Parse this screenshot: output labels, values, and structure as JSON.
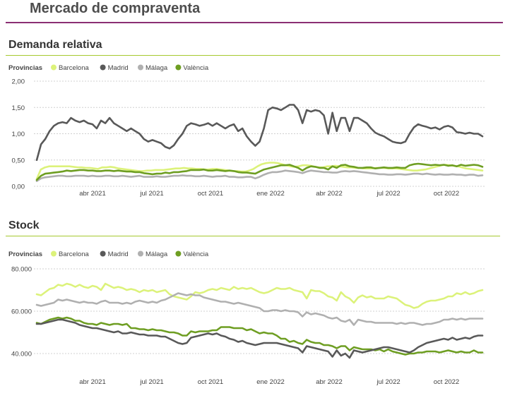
{
  "page": {
    "title": "Mercado de compraventa"
  },
  "colors": {
    "Barcelona": "#dcf27a",
    "Madrid": "#595959",
    "Málaga": "#b0b0b0",
    "València": "#6e9e22",
    "title_rule": "#8b2f73",
    "section_rule": "#a6c92f"
  },
  "chart_data": [
    {
      "type": "line",
      "title": "Demanda relativa",
      "legend_title": "Provincias",
      "legend_position": "top-left",
      "x_ticks": [
        "abr 2021",
        "jul 2021",
        "oct 2021",
        "ene 2022",
        "abr 2022",
        "jul 2022",
        "oct 2022"
      ],
      "y_ticks": [
        "2,00",
        "1,50",
        "1,00",
        "0,50",
        "0,00"
      ],
      "ylim": [
        0,
        2
      ],
      "grid": "horizontal dashed",
      "x_range": [
        "2021-01",
        "2022-12"
      ],
      "series": [
        {
          "name": "Barcelona",
          "values": [
            0.14,
            0.32,
            0.36,
            0.38,
            0.38,
            0.38,
            0.38,
            0.38,
            0.38,
            0.37,
            0.36,
            0.36,
            0.35,
            0.35,
            0.34,
            0.33,
            0.36,
            0.36,
            0.37,
            0.36,
            0.34,
            0.33,
            0.32,
            0.31,
            0.3,
            0.29,
            0.29,
            0.3,
            0.3,
            0.31,
            0.31,
            0.31,
            0.32,
            0.33,
            0.34,
            0.34,
            0.35,
            0.34,
            0.34,
            0.33,
            0.33,
            0.32,
            0.32,
            0.33,
            0.33,
            0.32,
            0.31,
            0.3,
            0.29,
            0.29,
            0.28,
            0.28,
            0.3,
            0.33,
            0.38,
            0.42,
            0.44,
            0.45,
            0.45,
            0.44,
            0.42,
            0.4,
            0.38,
            0.37,
            0.38,
            0.4,
            0.4,
            0.39,
            0.37,
            0.36,
            0.36,
            0.38,
            0.38,
            0.39,
            0.38,
            0.37,
            0.36,
            0.36,
            0.35,
            0.35,
            0.34,
            0.34,
            0.34,
            0.35,
            0.35,
            0.35,
            0.34,
            0.34,
            0.34,
            0.33,
            0.32,
            0.31,
            0.3,
            0.3,
            0.31,
            0.32,
            0.34,
            0.36,
            0.38,
            0.4,
            0.41,
            0.4,
            0.39,
            0.38,
            0.36,
            0.34,
            0.33,
            0.32,
            0.31,
            0.3
          ]
        },
        {
          "name": "Madrid",
          "values": [
            0.5,
            0.8,
            0.9,
            1.05,
            1.15,
            1.2,
            1.22,
            1.2,
            1.3,
            1.25,
            1.22,
            1.25,
            1.2,
            1.18,
            1.1,
            1.25,
            1.2,
            1.3,
            1.2,
            1.15,
            1.1,
            1.05,
            1.1,
            1.05,
            1.0,
            0.9,
            0.85,
            0.88,
            0.85,
            0.82,
            0.75,
            0.72,
            0.78,
            0.9,
            1.0,
            1.15,
            1.2,
            1.18,
            1.15,
            1.17,
            1.2,
            1.15,
            1.2,
            1.15,
            1.1,
            1.15,
            1.18,
            1.05,
            1.1,
            0.95,
            0.85,
            0.77,
            0.85,
            1.1,
            1.45,
            1.5,
            1.48,
            1.45,
            1.5,
            1.55,
            1.55,
            1.45,
            1.2,
            1.45,
            1.42,
            1.45,
            1.43,
            1.35,
            1.0,
            1.4,
            1.05,
            1.3,
            1.3,
            1.05,
            1.3,
            1.3,
            1.25,
            1.2,
            1.1,
            1.02,
            0.98,
            0.95,
            0.9,
            0.85,
            0.83,
            0.82,
            0.85,
            1.0,
            1.12,
            1.18,
            1.15,
            1.13,
            1.1,
            1.12,
            1.08,
            1.13,
            1.15,
            1.12,
            1.03,
            1.02,
            1.0,
            1.02,
            1.0,
            1.0,
            0.95
          ]
        },
        {
          "name": "Málaga",
          "values": [
            0.1,
            0.15,
            0.17,
            0.18,
            0.19,
            0.2,
            0.2,
            0.19,
            0.19,
            0.2,
            0.2,
            0.2,
            0.19,
            0.2,
            0.19,
            0.19,
            0.2,
            0.2,
            0.19,
            0.19,
            0.2,
            0.19,
            0.18,
            0.19,
            0.2,
            0.18,
            0.18,
            0.18,
            0.19,
            0.18,
            0.18,
            0.19,
            0.2,
            0.2,
            0.21,
            0.2,
            0.2,
            0.19,
            0.19,
            0.2,
            0.19,
            0.18,
            0.19,
            0.19,
            0.2,
            0.18,
            0.18,
            0.17,
            0.17,
            0.18,
            0.18,
            0.15,
            0.18,
            0.22,
            0.25,
            0.27,
            0.27,
            0.28,
            0.3,
            0.29,
            0.28,
            0.27,
            0.25,
            0.28,
            0.3,
            0.29,
            0.28,
            0.27,
            0.27,
            0.26,
            0.26,
            0.28,
            0.29,
            0.28,
            0.29,
            0.28,
            0.27,
            0.26,
            0.25,
            0.24,
            0.23,
            0.23,
            0.22,
            0.22,
            0.23,
            0.23,
            0.22,
            0.23,
            0.24,
            0.24,
            0.23,
            0.24,
            0.23,
            0.22,
            0.23,
            0.22,
            0.22,
            0.23,
            0.22,
            0.22,
            0.21,
            0.22,
            0.22,
            0.2,
            0.21
          ]
        },
        {
          "name": "València",
          "values": [
            0.12,
            0.2,
            0.24,
            0.25,
            0.26,
            0.27,
            0.28,
            0.3,
            0.29,
            0.3,
            0.31,
            0.31,
            0.3,
            0.3,
            0.29,
            0.29,
            0.3,
            0.3,
            0.29,
            0.3,
            0.29,
            0.28,
            0.28,
            0.27,
            0.27,
            0.25,
            0.24,
            0.23,
            0.24,
            0.24,
            0.26,
            0.25,
            0.27,
            0.27,
            0.28,
            0.29,
            0.31,
            0.31,
            0.31,
            0.32,
            0.3,
            0.3,
            0.31,
            0.3,
            0.29,
            0.3,
            0.29,
            0.27,
            0.26,
            0.26,
            0.25,
            0.24,
            0.28,
            0.32,
            0.34,
            0.36,
            0.38,
            0.4,
            0.4,
            0.41,
            0.38,
            0.35,
            0.3,
            0.35,
            0.38,
            0.37,
            0.35,
            0.35,
            0.32,
            0.38,
            0.35,
            0.4,
            0.41,
            0.38,
            0.37,
            0.35,
            0.35,
            0.36,
            0.36,
            0.34,
            0.35,
            0.36,
            0.35,
            0.35,
            0.36,
            0.35,
            0.35,
            0.4,
            0.42,
            0.43,
            0.42,
            0.41,
            0.4,
            0.41,
            0.4,
            0.41,
            0.39,
            0.4,
            0.38,
            0.41,
            0.39,
            0.4,
            0.41,
            0.4,
            0.37
          ]
        }
      ]
    },
    {
      "type": "line",
      "title": "Stock",
      "legend_title": "Provincias",
      "legend_position": "top-left",
      "x_ticks": [
        "abr 2021",
        "jul 2021",
        "oct 2021",
        "ene 2022",
        "abr 2022",
        "jul 2022",
        "oct 2022"
      ],
      "y_ticks": [
        "80.000",
        "60.000",
        "40.000"
      ],
      "ylim": [
        34000,
        80000
      ],
      "grid": "horizontal dashed",
      "x_range": [
        "2021-01",
        "2022-12"
      ],
      "series": [
        {
          "name": "Barcelona",
          "values": [
            68000,
            67500,
            69000,
            70500,
            71000,
            72500,
            72000,
            73000,
            72500,
            71500,
            72500,
            71500,
            71000,
            72000,
            71500,
            70000,
            73000,
            72000,
            71000,
            71500,
            71000,
            70000,
            70500,
            70000,
            69000,
            70000,
            69500,
            70000,
            69000,
            69500,
            70000,
            68000,
            67000,
            66500,
            66000,
            65500,
            67000,
            69000,
            68500,
            69000,
            70000,
            70500,
            70000,
            71000,
            70500,
            70000,
            71500,
            70500,
            71000,
            70500,
            71000,
            70000,
            69000,
            68500,
            69000,
            70000,
            71000,
            70500,
            70500,
            71000,
            70000,
            69500,
            69000,
            66000,
            70000,
            69500,
            69500,
            68500,
            67000,
            66500,
            65000,
            69000,
            67000,
            66000,
            64000,
            66500,
            67500,
            66500,
            67000,
            66000,
            66000,
            66000,
            67000,
            66500,
            66000,
            64500,
            63000,
            62500,
            61500,
            62000,
            63500,
            64500,
            65000,
            65000,
            65500,
            66000,
            67000,
            67000,
            68500,
            68000,
            69000,
            68000,
            68500,
            69500,
            70000
          ]
        },
        {
          "name": "Madrid",
          "values": [
            54000,
            54000,
            54500,
            55000,
            55500,
            56000,
            56000,
            55500,
            55000,
            54500,
            53500,
            53000,
            52500,
            52000,
            52000,
            51500,
            51000,
            50500,
            50000,
            50500,
            49500,
            49500,
            50000,
            49500,
            49000,
            49000,
            48500,
            48500,
            48500,
            48000,
            48000,
            47000,
            46000,
            45000,
            44500,
            45000,
            47500,
            48000,
            48500,
            49000,
            49500,
            49000,
            49500,
            48500,
            48000,
            47000,
            46500,
            45500,
            46000,
            45000,
            44500,
            44000,
            44500,
            45000,
            45000,
            45000,
            45000,
            44500,
            44000,
            43500,
            43000,
            42500,
            40500,
            43500,
            43000,
            42500,
            42000,
            41500,
            41000,
            38500,
            41500,
            39000,
            40000,
            38000,
            41500,
            41000,
            40500,
            41000,
            41500,
            42000,
            42500,
            43000,
            43000,
            42500,
            42000,
            41500,
            41000,
            40500,
            41500,
            43000,
            44000,
            45000,
            45500,
            46000,
            46500,
            47000,
            46500,
            47500,
            46500,
            47000,
            47500,
            47000,
            48000,
            48500,
            48500
          ]
        },
        {
          "name": "Málaga",
          "values": [
            63000,
            62500,
            63000,
            63500,
            64000,
            65500,
            65000,
            65500,
            65000,
            64500,
            64000,
            64500,
            64000,
            64000,
            63500,
            64500,
            65000,
            64000,
            64000,
            64000,
            63500,
            64000,
            63500,
            64500,
            65000,
            64500,
            64000,
            64500,
            64000,
            65000,
            65500,
            66500,
            67500,
            68500,
            68000,
            67500,
            68000,
            67500,
            67500,
            66500,
            66000,
            65500,
            65000,
            64500,
            64500,
            64000,
            63500,
            64000,
            63500,
            63000,
            62500,
            62000,
            61500,
            60000,
            60000,
            60500,
            60500,
            60000,
            60500,
            60000,
            60000,
            59500,
            57500,
            59500,
            58500,
            59000,
            58500,
            58000,
            57000,
            56500,
            57000,
            55500,
            55000,
            56000,
            53500,
            56000,
            55500,
            55000,
            55000,
            54500,
            54500,
            54500,
            54500,
            54500,
            54000,
            54500,
            54000,
            54500,
            54500,
            54000,
            53500,
            54000,
            54000,
            54500,
            55000,
            56000,
            56000,
            56500,
            56000,
            56500,
            56000,
            56500,
            56500,
            56500,
            56500
          ]
        },
        {
          "name": "València",
          "values": [
            54500,
            54000,
            55000,
            56000,
            56500,
            57000,
            56500,
            57000,
            56500,
            55500,
            55500,
            54500,
            54000,
            54000,
            53500,
            54500,
            54000,
            53500,
            54000,
            54000,
            53500,
            54000,
            52000,
            52000,
            51500,
            51500,
            51000,
            51500,
            51000,
            51000,
            50500,
            50000,
            50000,
            49500,
            48500,
            48500,
            50500,
            50000,
            50500,
            50500,
            50500,
            51000,
            51000,
            52500,
            52500,
            52500,
            52000,
            52000,
            52000,
            51000,
            51500,
            50500,
            49500,
            50000,
            49500,
            49500,
            48500,
            47000,
            47000,
            45500,
            46000,
            45000,
            44500,
            46500,
            45500,
            45000,
            45000,
            44000,
            44000,
            43500,
            42500,
            43500,
            43500,
            41500,
            43000,
            42500,
            42000,
            42000,
            42000,
            41500,
            42000,
            41000,
            42000,
            41000,
            40500,
            40000,
            39500,
            40000,
            40000,
            40500,
            40500,
            41000,
            41000,
            41000,
            40500,
            41000,
            41500,
            41000,
            40500,
            41000,
            40500,
            40500,
            41500,
            40500,
            40500
          ]
        }
      ]
    }
  ]
}
